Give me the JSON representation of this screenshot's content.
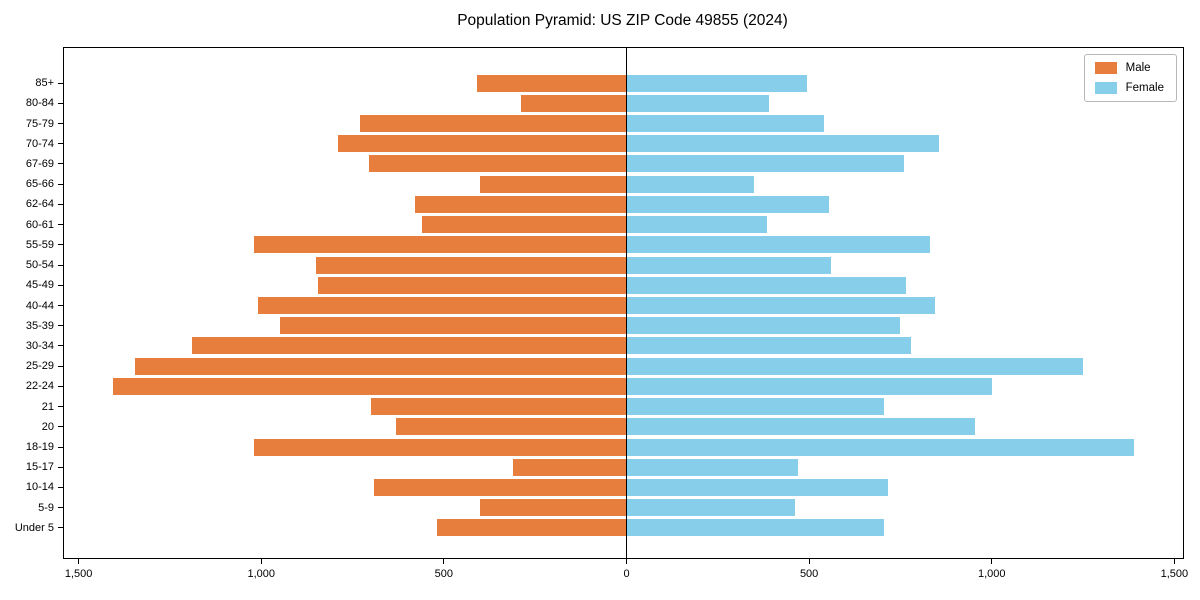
{
  "title": "Population Pyramid: US ZIP Code 49855 (2024)",
  "legend": {
    "male_label": "Male",
    "female_label": "Female"
  },
  "colors": {
    "male": "#e87e3d",
    "female": "#87ceeb",
    "axis": "#000000",
    "center_line": "#000000",
    "legend_border": "#b7b7b7",
    "background": "#ffffff"
  },
  "x_axis": {
    "tick_values": [
      -1500,
      -1000,
      -500,
      0,
      500,
      1000,
      1500
    ],
    "tick_labels": [
      "1,500",
      "1,000",
      "500",
      "0",
      "500",
      "1,000",
      "1,500"
    ]
  },
  "chart_data": {
    "type": "bar",
    "subtype": "population-pyramid",
    "orientation": "horizontal",
    "title": "Population Pyramid: US ZIP Code 49855 (2024)",
    "categories": [
      "85+",
      "80-84",
      "75-79",
      "70-74",
      "67-69",
      "65-66",
      "62-64",
      "60-61",
      "55-59",
      "50-54",
      "45-49",
      "40-44",
      "35-39",
      "30-34",
      "25-29",
      "22-24",
      "21",
      "20",
      "18-19",
      "15-17",
      "10-14",
      "5-9",
      "Under 5"
    ],
    "series": [
      {
        "name": "Male",
        "side": "left",
        "color": "#e87e3d",
        "values": [
          410,
          290,
          730,
          790,
          705,
          400,
          580,
          560,
          1020,
          850,
          845,
          1010,
          950,
          1190,
          1345,
          1405,
          700,
          630,
          1020,
          310,
          690,
          400,
          520
        ]
      },
      {
        "name": "Female",
        "side": "right",
        "color": "#87ceeb",
        "values": [
          495,
          390,
          540,
          855,
          760,
          350,
          555,
          385,
          830,
          560,
          765,
          845,
          750,
          780,
          1250,
          1000,
          705,
          955,
          1390,
          470,
          715,
          460,
          705
        ]
      }
    ],
    "xlim": [
      -1540,
      1540
    ],
    "grid": false,
    "legend_position": "upper right",
    "center_line_x": 0
  }
}
